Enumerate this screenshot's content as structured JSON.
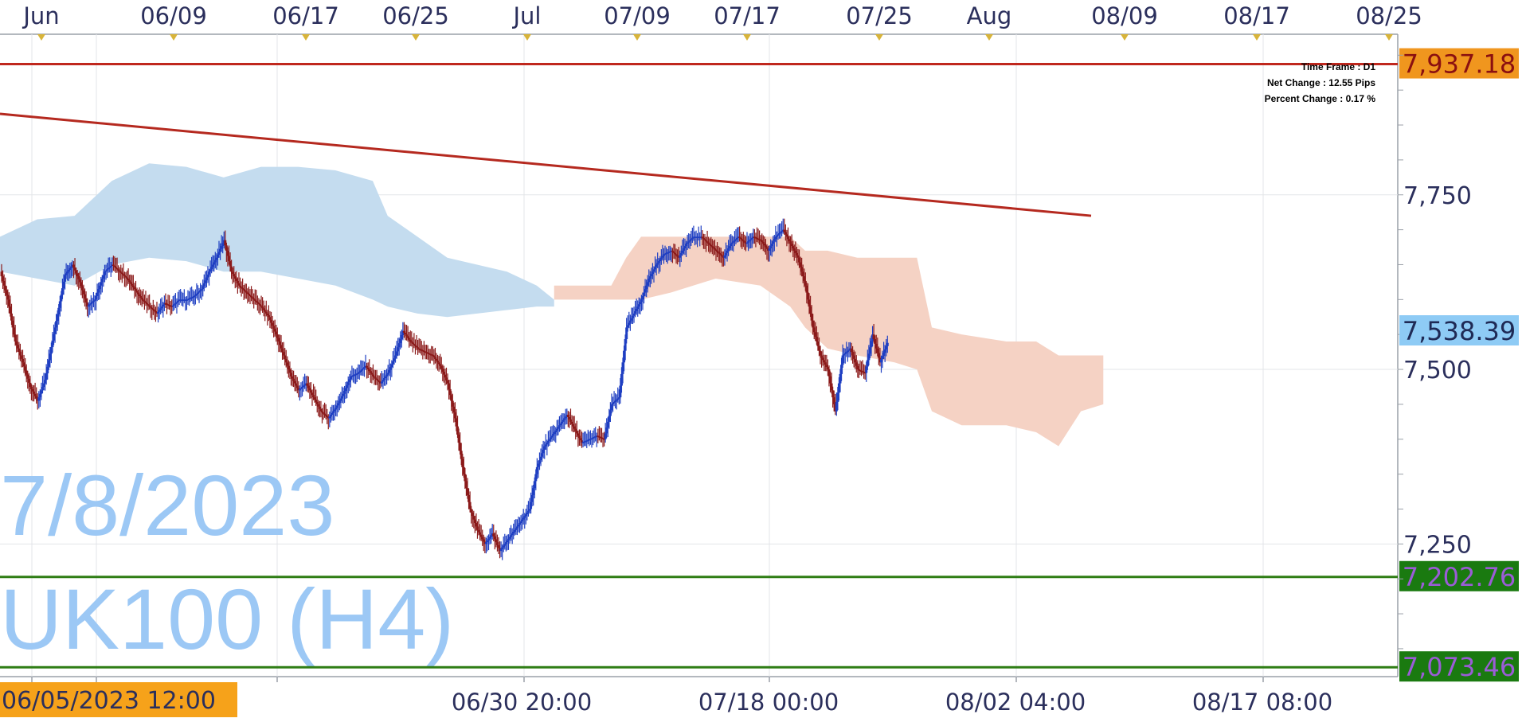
{
  "chart_data": {
    "type": "candlestick",
    "symbol": "UK100 (H4)",
    "watermark_date": "7/8/2023",
    "timeframe_label": "Time Frame : D1",
    "net_change_label": "Net Change : 12.55 Pips",
    "percent_change_label": "Percent Change : 0.17 %",
    "x_top_labels": [
      "Jun",
      "06/09",
      "06/17",
      "06/25",
      "Jul",
      "07/09",
      "07/17",
      "07/25",
      "Aug",
      "08/09",
      "08/17",
      "08/25"
    ],
    "x_bottom_labels": [
      "06/30 20:00",
      "07/18 00:00",
      "08/02 04:00",
      "08/17 08:00"
    ],
    "cursor_time_label": "06/05/2023 12:00",
    "y_tick_labels": [
      "7,750",
      "7,500",
      "7,250"
    ],
    "ylim": [
      7060,
      7980
    ],
    "current_price": "7,538.39",
    "horizontal_levels": [
      {
        "label": "7,937.18",
        "value": 7937.18,
        "color": "#c0281e",
        "tag_bg": "#f0961e",
        "tag_fg": "#8b1010"
      },
      {
        "label": "7,202.76",
        "value": 7202.76,
        "color": "#2e7d14",
        "tag_bg": "#1a7a10",
        "tag_fg": "#9b5cd6"
      },
      {
        "label": "7,073.46",
        "value": 7073.46,
        "color": "#2e7d14",
        "tag_bg": "#1a7a10",
        "tag_fg": "#9b5cd6"
      }
    ],
    "trendline": {
      "start": 7866,
      "end": 7720,
      "color": "#b5291f"
    },
    "colors": {
      "bull": "#1f3fc2",
      "bear": "#8b1a1a",
      "cloud_bull": "#c4dcef",
      "cloud_bear": "#f5d2c4",
      "price_tag": "#8ecbf5"
    },
    "close_path": [
      [
        0,
        7640
      ],
      [
        6,
        7600
      ],
      [
        12,
        7540
      ],
      [
        18,
        7510
      ],
      [
        24,
        7475
      ],
      [
        30,
        7455
      ],
      [
        36,
        7485
      ],
      [
        44,
        7560
      ],
      [
        52,
        7635
      ],
      [
        58,
        7650
      ],
      [
        64,
        7625
      ],
      [
        70,
        7590
      ],
      [
        76,
        7600
      ],
      [
        84,
        7640
      ],
      [
        90,
        7650
      ],
      [
        96,
        7640
      ],
      [
        102,
        7630
      ],
      [
        108,
        7615
      ],
      [
        114,
        7600
      ],
      [
        120,
        7590
      ],
      [
        126,
        7580
      ],
      [
        132,
        7595
      ],
      [
        138,
        7590
      ],
      [
        144,
        7600
      ],
      [
        150,
        7600
      ],
      [
        156,
        7605
      ],
      [
        162,
        7615
      ],
      [
        168,
        7640
      ],
      [
        174,
        7660
      ],
      [
        180,
        7685
      ],
      [
        186,
        7640
      ],
      [
        192,
        7620
      ],
      [
        198,
        7610
      ],
      [
        204,
        7600
      ],
      [
        210,
        7590
      ],
      [
        216,
        7575
      ],
      [
        222,
        7550
      ],
      [
        228,
        7520
      ],
      [
        234,
        7490
      ],
      [
        240,
        7470
      ],
      [
        246,
        7480
      ],
      [
        252,
        7460
      ],
      [
        258,
        7440
      ],
      [
        264,
        7430
      ],
      [
        270,
        7445
      ],
      [
        276,
        7465
      ],
      [
        282,
        7490
      ],
      [
        288,
        7495
      ],
      [
        294,
        7505
      ],
      [
        300,
        7490
      ],
      [
        306,
        7480
      ],
      [
        312,
        7495
      ],
      [
        318,
        7520
      ],
      [
        324,
        7555
      ],
      [
        330,
        7540
      ],
      [
        336,
        7530
      ],
      [
        342,
        7525
      ],
      [
        348,
        7520
      ],
      [
        354,
        7505
      ],
      [
        360,
        7480
      ],
      [
        366,
        7430
      ],
      [
        372,
        7360
      ],
      [
        378,
        7300
      ],
      [
        384,
        7270
      ],
      [
        390,
        7250
      ],
      [
        396,
        7265
      ],
      [
        402,
        7240
      ],
      [
        408,
        7255
      ],
      [
        414,
        7270
      ],
      [
        420,
        7285
      ],
      [
        426,
        7300
      ],
      [
        432,
        7360
      ],
      [
        438,
        7390
      ],
      [
        444,
        7405
      ],
      [
        450,
        7420
      ],
      [
        456,
        7435
      ],
      [
        462,
        7415
      ],
      [
        468,
        7395
      ],
      [
        474,
        7400
      ],
      [
        480,
        7405
      ],
      [
        486,
        7400
      ],
      [
        492,
        7450
      ],
      [
        498,
        7460
      ],
      [
        504,
        7560
      ],
      [
        510,
        7580
      ],
      [
        516,
        7600
      ],
      [
        522,
        7630
      ],
      [
        528,
        7650
      ],
      [
        534,
        7665
      ],
      [
        540,
        7670
      ],
      [
        546,
        7660
      ],
      [
        552,
        7680
      ],
      [
        558,
        7690
      ],
      [
        564,
        7690
      ],
      [
        570,
        7680
      ],
      [
        576,
        7670
      ],
      [
        582,
        7660
      ],
      [
        588,
        7680
      ],
      [
        594,
        7690
      ],
      [
        600,
        7680
      ],
      [
        606,
        7690
      ],
      [
        612,
        7685
      ],
      [
        618,
        7670
      ],
      [
        624,
        7690
      ],
      [
        630,
        7700
      ],
      [
        636,
        7680
      ],
      [
        642,
        7660
      ],
      [
        648,
        7620
      ],
      [
        654,
        7560
      ],
      [
        660,
        7520
      ],
      [
        666,
        7500
      ],
      [
        672,
        7440
      ],
      [
        678,
        7520
      ],
      [
        684,
        7530
      ],
      [
        690,
        7500
      ],
      [
        696,
        7495
      ],
      [
        702,
        7550
      ],
      [
        708,
        7510
      ],
      [
        714,
        7538
      ]
    ],
    "cloud_blue": [
      [
        0,
        7690,
        7640
      ],
      [
        30,
        7715,
        7630
      ],
      [
        60,
        7720,
        7620
      ],
      [
        90,
        7770,
        7650
      ],
      [
        120,
        7795,
        7660
      ],
      [
        150,
        7790,
        7655
      ],
      [
        180,
        7775,
        7640
      ],
      [
        210,
        7790,
        7640
      ],
      [
        240,
        7790,
        7630
      ],
      [
        270,
        7785,
        7620
      ],
      [
        300,
        7770,
        7600
      ],
      [
        312,
        7720,
        7590
      ],
      [
        336,
        7690,
        7580
      ],
      [
        360,
        7660,
        7575
      ],
      [
        384,
        7650,
        7580
      ],
      [
        408,
        7640,
        7585
      ],
      [
        432,
        7620,
        7590
      ],
      [
        446,
        7600,
        7590
      ]
    ],
    "cloud_red": [
      [
        446,
        7620,
        7600
      ],
      [
        492,
        7620,
        7600
      ],
      [
        504,
        7660,
        7600
      ],
      [
        516,
        7690,
        7600
      ],
      [
        540,
        7690,
        7610
      ],
      [
        576,
        7690,
        7630
      ],
      [
        612,
        7690,
        7620
      ],
      [
        636,
        7690,
        7590
      ],
      [
        648,
        7670,
        7560
      ],
      [
        666,
        7670,
        7530
      ],
      [
        690,
        7660,
        7520
      ],
      [
        720,
        7660,
        7510
      ],
      [
        738,
        7660,
        7500
      ],
      [
        750,
        7560,
        7440
      ],
      [
        774,
        7550,
        7420
      ],
      [
        810,
        7540,
        7420
      ],
      [
        834,
        7540,
        7410
      ],
      [
        852,
        7520,
        7390
      ],
      [
        870,
        7520,
        7440
      ],
      [
        888,
        7520,
        7450
      ]
    ]
  }
}
